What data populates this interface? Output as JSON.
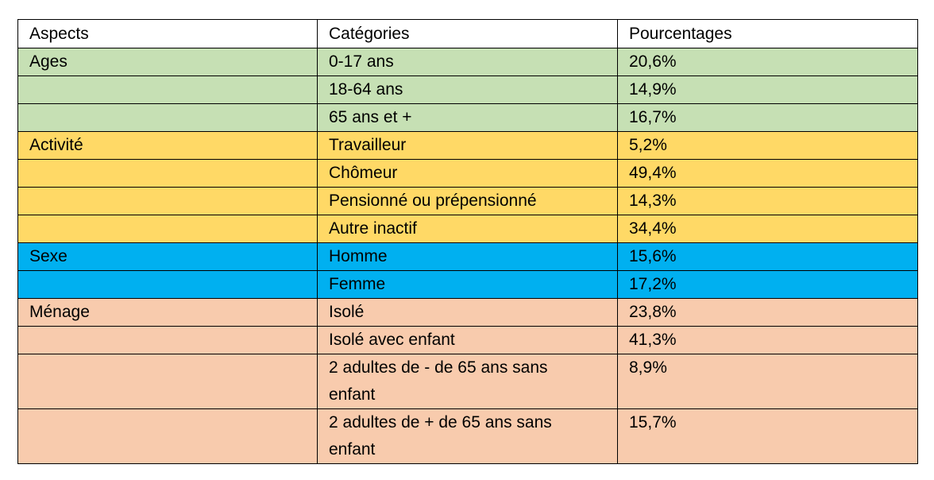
{
  "table": {
    "header": [
      "Aspects",
      "Catégories",
      "Pourcentages"
    ],
    "groups": [
      {
        "aspect": "Ages",
        "rows": [
          [
            "0-17 ans",
            "20,6%"
          ],
          [
            "18-64 ans",
            "14,9%"
          ],
          [
            "65 ans et +",
            "16,7%"
          ]
        ]
      },
      {
        "aspect": "Activité",
        "rows": [
          [
            "Travailleur",
            "5,2%"
          ],
          [
            "Chômeur",
            "49,4%"
          ],
          [
            "Pensionné ou prépensionné",
            "14,3%"
          ],
          [
            "Autre inactif",
            "34,4%"
          ]
        ]
      },
      {
        "aspect": "Sexe",
        "rows": [
          [
            "Homme",
            "15,6%"
          ],
          [
            "Femme",
            "17,2%"
          ]
        ]
      },
      {
        "aspect": "Ménage",
        "rows": [
          [
            "Isolé",
            "23,8%"
          ],
          [
            "Isolé avec enfant",
            "41,3%"
          ],
          [
            "2 adultes de - de 65 ans sans enfant",
            "8,9%"
          ],
          [
            "2 adultes de + de 65 ans sans enfant",
            "15,7%"
          ]
        ]
      }
    ]
  }
}
